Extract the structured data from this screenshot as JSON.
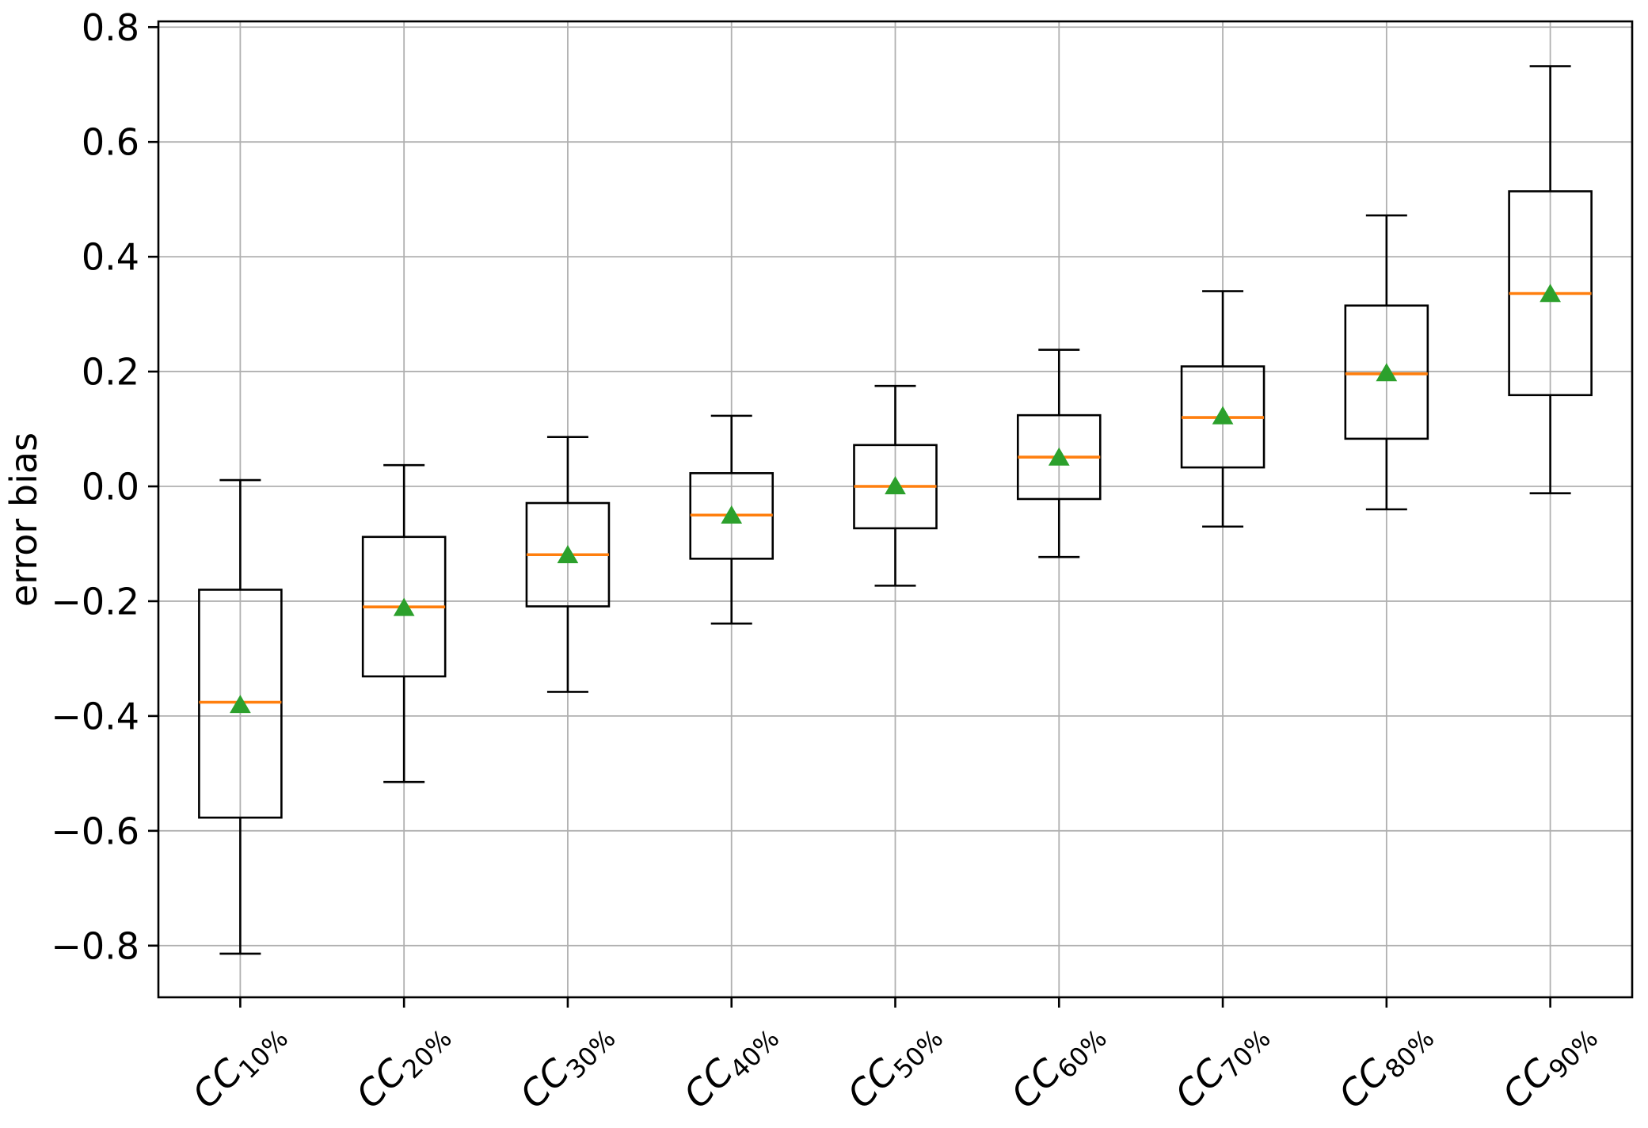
{
  "chart_data": {
    "type": "boxplot",
    "title": "",
    "xlabel": "",
    "ylabel": "error bias",
    "ylim": [
      -0.89,
      0.81
    ],
    "grid": true,
    "legend": "none",
    "yticks": [
      0.8,
      0.6,
      0.4,
      0.2,
      0.0,
      -0.2,
      -0.4,
      -0.6,
      -0.8
    ],
    "ytick_labels": [
      "0.8",
      "0.6",
      "0.4",
      "0.2",
      "0.0",
      "−0.2",
      "−0.4",
      "−0.6",
      "−0.8"
    ],
    "categories": [
      "CC_10%",
      "CC_20%",
      "CC_30%",
      "CC_40%",
      "CC_50%",
      "CC_60%",
      "CC_70%",
      "CC_80%",
      "CC_90%"
    ],
    "boxes": [
      {
        "label_main": "CC",
        "label_sub": "10%",
        "whislo": -0.814,
        "q1": -0.577,
        "med": -0.376,
        "mean": -0.381,
        "q3": -0.18,
        "whishi": 0.011
      },
      {
        "label_main": "CC",
        "label_sub": "20%",
        "whislo": -0.515,
        "q1": -0.331,
        "med": -0.21,
        "mean": -0.212,
        "q3": -0.088,
        "whishi": 0.037
      },
      {
        "label_main": "CC",
        "label_sub": "30%",
        "whislo": -0.358,
        "q1": -0.209,
        "med": -0.119,
        "mean": -0.12,
        "q3": -0.029,
        "whishi": 0.086
      },
      {
        "label_main": "CC",
        "label_sub": "40%",
        "whislo": -0.239,
        "q1": -0.126,
        "med": -0.05,
        "mean": -0.051,
        "q3": 0.023,
        "whishi": 0.123
      },
      {
        "label_main": "CC",
        "label_sub": "50%",
        "whislo": -0.173,
        "q1": -0.073,
        "med": 0.0,
        "mean": 0.0,
        "q3": 0.072,
        "whishi": 0.175
      },
      {
        "label_main": "CC",
        "label_sub": "60%",
        "whislo": -0.123,
        "q1": -0.022,
        "med": 0.051,
        "mean": 0.05,
        "q3": 0.124,
        "whishi": 0.238
      },
      {
        "label_main": "CC",
        "label_sub": "70%",
        "whislo": -0.07,
        "q1": 0.033,
        "med": 0.12,
        "mean": 0.122,
        "q3": 0.209,
        "whishi": 0.34
      },
      {
        "label_main": "CC",
        "label_sub": "80%",
        "whislo": -0.04,
        "q1": 0.083,
        "med": 0.196,
        "mean": 0.197,
        "q3": 0.315,
        "whishi": 0.472
      },
      {
        "label_main": "CC",
        "label_sub": "90%",
        "whislo": -0.012,
        "q1": 0.159,
        "med": 0.336,
        "mean": 0.335,
        "q3": 0.514,
        "whishi": 0.732
      }
    ],
    "colors": {
      "box_edge": "#000000",
      "median": "#ff7f0e",
      "mean_marker": "#2ca02c",
      "grid": "#b0b0b0",
      "spine": "#000000",
      "text": "#000000",
      "background": "#ffffff"
    }
  }
}
